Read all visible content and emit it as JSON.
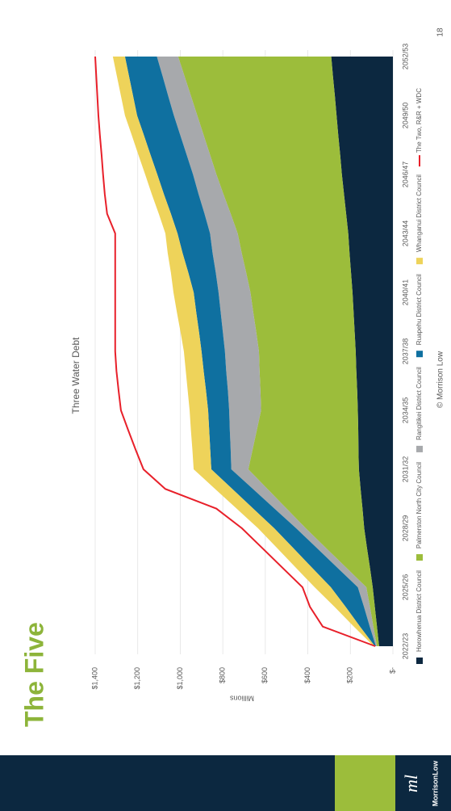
{
  "slide": {
    "title": "The Five",
    "footer": "© Morrison Low",
    "page_number": "18",
    "logo_mark": "ml",
    "logo_text": "MorrisonLow"
  },
  "chart_data": {
    "type": "stacked_area",
    "title": "Three Water Debt",
    "y_label": "Millions",
    "categories": [
      "2022/23",
      null,
      null,
      "2025/26",
      null,
      null,
      "2028/29",
      null,
      null,
      "2031/32",
      null,
      null,
      "2034/35",
      null,
      null,
      "2037/38",
      null,
      null,
      "2040/41",
      null,
      null,
      "2043/44",
      null,
      null,
      "2046/47",
      null,
      null,
      "2049/50",
      null,
      null,
      "2052/53"
    ],
    "ylim": [
      0,
      1400
    ],
    "yticks": [
      {
        "value": 0,
        "label": "$-"
      },
      {
        "value": 200,
        "label": "$200"
      },
      {
        "value": 400,
        "label": "$400"
      },
      {
        "value": 600,
        "label": "$600"
      },
      {
        "value": 800,
        "label": "$800"
      },
      {
        "value": 1000,
        "label": "$1,000"
      },
      {
        "value": 1200,
        "label": "$1,200"
      },
      {
        "value": 1400,
        "label": "$1,400"
      }
    ],
    "grid": true,
    "series": [
      {
        "name": "Horowhenua District Council",
        "color": "#0c2840",
        "values": [
          65,
          75,
          85,
          95,
          108,
          122,
          135,
          143,
          152,
          160,
          162,
          163,
          165,
          168,
          172,
          175,
          180,
          185,
          190,
          197,
          204,
          210,
          220,
          230,
          240,
          248,
          257,
          265,
          273,
          282,
          290
        ]
      },
      {
        "name": "Palmerston North City Council",
        "color": "#9cbd3b",
        "values": [
          10,
          17,
          23,
          30,
          112,
          193,
          275,
          357,
          438,
          520,
          498,
          477,
          455,
          455,
          455,
          455,
          463,
          472,
          480,
          493,
          507,
          520,
          543,
          567,
          590,
          612,
          633,
          655,
          677,
          698,
          720
        ]
      },
      {
        "name": "Rangitikei District Council",
        "color": "#a7a9ac",
        "values": [
          5,
          17,
          28,
          40,
          42,
          43,
          45,
          57,
          68,
          80,
          103,
          127,
          150,
          153,
          157,
          160,
          157,
          153,
          150,
          143,
          137,
          130,
          123,
          117,
          110,
          110,
          110,
          110,
          107,
          103,
          100
        ]
      },
      {
        "name": "Ruapehu District Council",
        "color": "#0f70a0",
        "values": [
          5,
          46,
          86,
          127,
          119,
          111,
          103,
          100,
          97,
          94,
          96,
          97,
          99,
          103,
          106,
          110,
          112,
          115,
          117,
          129,
          141,
          153,
          158,
          163,
          168,
          170,
          171,
          173,
          165,
          158,
          150
        ]
      },
      {
        "name": "Whanganui District Council",
        "color": "#eed35a",
        "values": [
          5,
          29,
          52,
          76,
          76,
          76,
          76,
          78,
          81,
          83,
          84,
          86,
          87,
          86,
          84,
          83,
          87,
          91,
          95,
          82,
          70,
          57,
          57,
          57,
          57,
          57,
          57,
          57,
          57,
          57,
          57
        ]
      },
      {
        "name": "The Two, R&R + WDC",
        "color": "#e8202a",
        "type": "line",
        "values": [
          83,
          330,
          390,
          425,
          520,
          615,
          710,
          830,
          1070,
          1173,
          1210,
          1245,
          1279,
          1290,
          1300,
          1306,
          1306,
          1306,
          1306,
          1306,
          1306,
          1306,
          1344,
          1355,
          1363,
          1370,
          1378,
          1385,
          1390,
          1395,
          1400
        ]
      }
    ]
  }
}
